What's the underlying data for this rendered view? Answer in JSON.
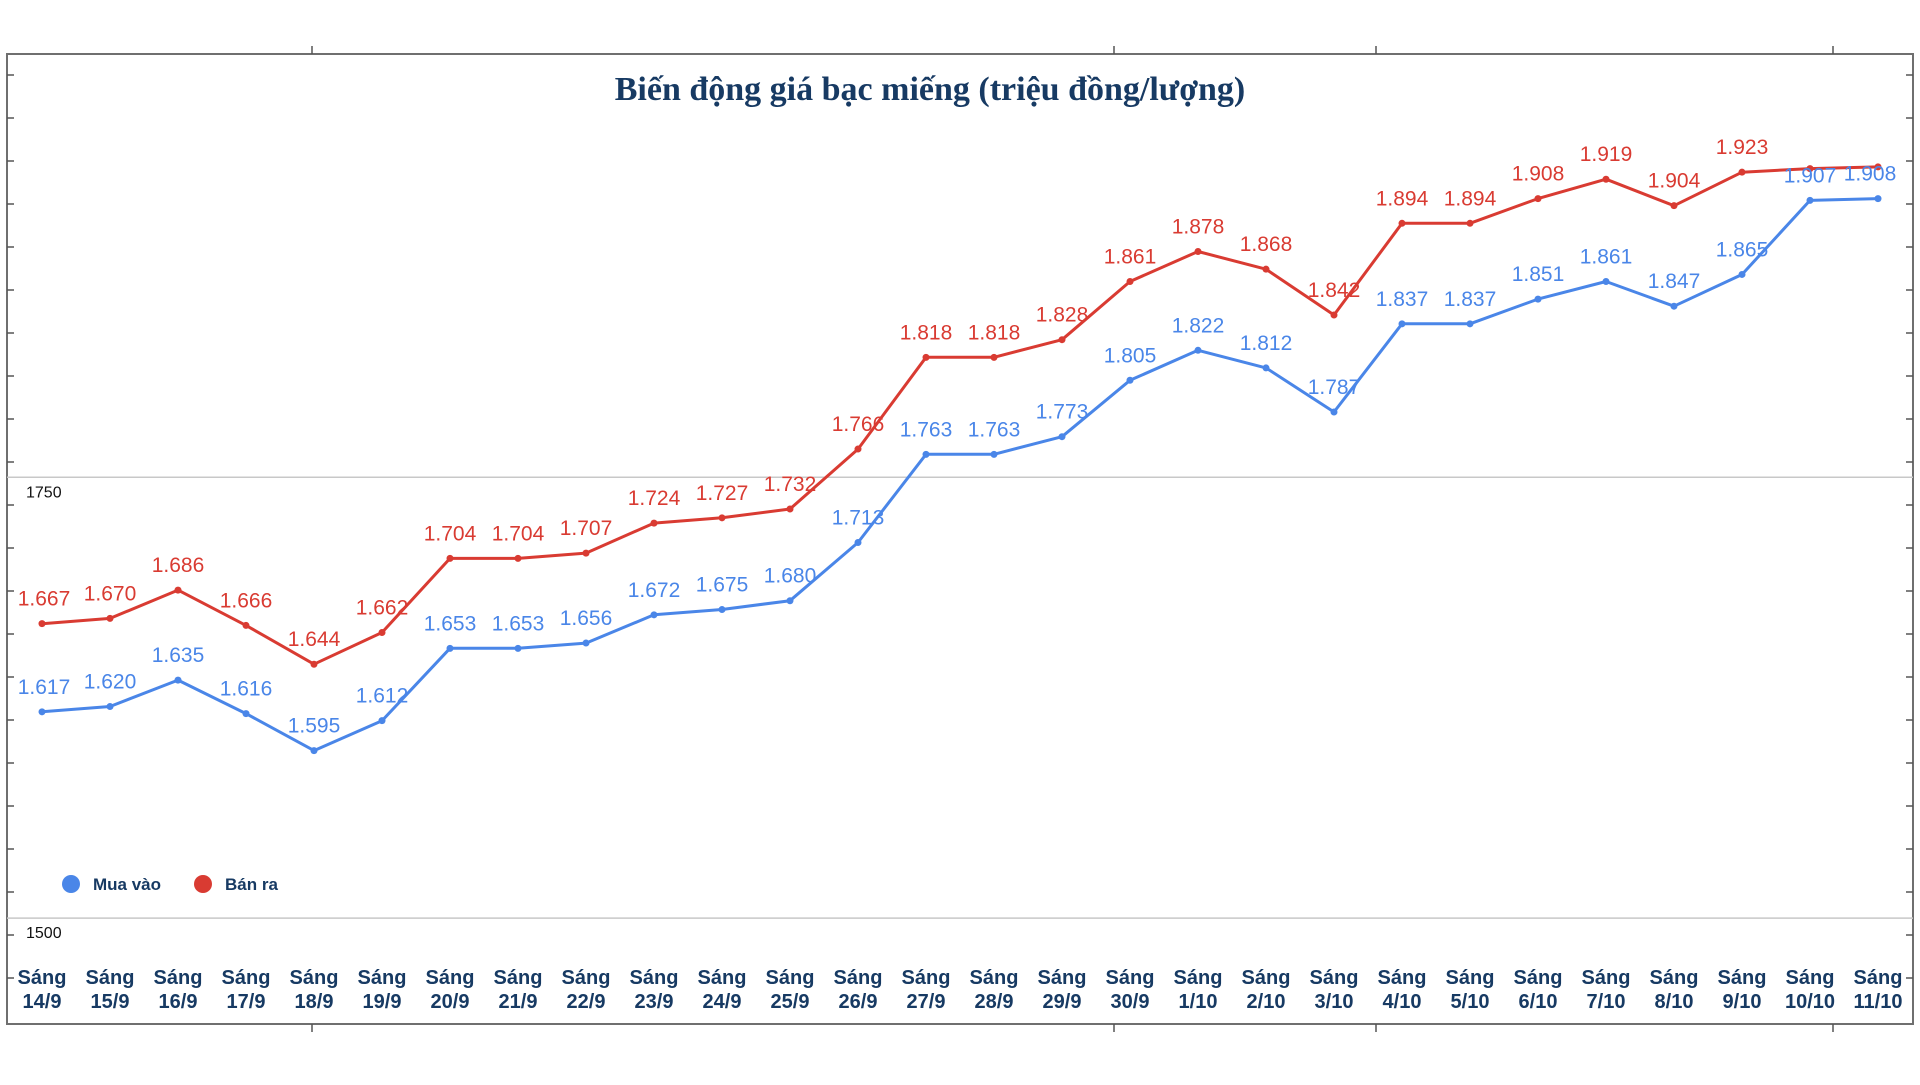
{
  "chart_data": {
    "type": "line",
    "title": "Biến động giá bạc miếng (triệu đồng/lượng)",
    "categories": [
      [
        "Sáng",
        "14/9"
      ],
      [
        "Sáng",
        "15/9"
      ],
      [
        "Sáng",
        "16/9"
      ],
      [
        "Sáng",
        "17/9"
      ],
      [
        "Sáng",
        "18/9"
      ],
      [
        "Sáng",
        "19/9"
      ],
      [
        "Sáng",
        "20/9"
      ],
      [
        "Sáng",
        "21/9"
      ],
      [
        "Sáng",
        "22/9"
      ],
      [
        "Sáng",
        "23/9"
      ],
      [
        "Sáng",
        "24/9"
      ],
      [
        "Sáng",
        "25/9"
      ],
      [
        "Sáng",
        "26/9"
      ],
      [
        "Sáng",
        "27/9"
      ],
      [
        "Sáng",
        "28/9"
      ],
      [
        "Sáng",
        "29/9"
      ],
      [
        "Sáng",
        "30/9"
      ],
      [
        "Sáng",
        "1/10"
      ],
      [
        "Sáng",
        "2/10"
      ],
      [
        "Sáng",
        "3/10"
      ],
      [
        "Sáng",
        "4/10"
      ],
      [
        "Sáng",
        "5/10"
      ],
      [
        "Sáng",
        "6/10"
      ],
      [
        "Sáng",
        "7/10"
      ],
      [
        "Sáng",
        "8/10"
      ],
      [
        "Sáng",
        "9/10"
      ],
      [
        "Sáng",
        "10/10"
      ],
      [
        "Sáng",
        "11/10"
      ]
    ],
    "series": [
      {
        "name": "Mua vào",
        "color": "#4a86e8",
        "values": [
          1617,
          1620,
          1635,
          1616,
          1595,
          1612,
          1653,
          1653,
          1656,
          1672,
          1675,
          1680,
          1713,
          1763,
          1763,
          1773,
          1805,
          1822,
          1812,
          1787,
          1837,
          1837,
          1851,
          1861,
          1847,
          1865,
          1907,
          1908
        ],
        "labels": [
          "1.617",
          "1.620",
          "1.635",
          "1.616",
          "1.595",
          "1.612",
          "1.653",
          "1.653",
          "1.656",
          "1.672",
          "1.675",
          "1.680",
          "1.713",
          "1.763",
          "1.763",
          "1.773",
          "1.805",
          "1.822",
          "1.812",
          "1.787",
          "1.837",
          "1.837",
          "1.851",
          "1.861",
          "1.847",
          "1.865",
          "1.907",
          "1.908"
        ]
      },
      {
        "name": "Bán ra",
        "color": "#d93b32",
        "values": [
          1667,
          1670,
          1686,
          1666,
          1644,
          1662,
          1704,
          1704,
          1707,
          1724,
          1727,
          1732,
          1766,
          1818,
          1818,
          1828,
          1861,
          1878,
          1868,
          1842,
          1894,
          1894,
          1908,
          1919,
          1904,
          1923,
          1925,
          1926
        ],
        "labels": [
          "1.667",
          "1.670",
          "1.686",
          "1.666",
          "1.644",
          "1.662",
          "1.704",
          "1.704",
          "1.707",
          "1.724",
          "1.727",
          "1.732",
          "1.766",
          "1.818",
          "1.818",
          "1.828",
          "1.861",
          "1.878",
          "1.868",
          "1.842",
          "1.894",
          "1.894",
          "1.908",
          "1.919",
          "1.904",
          "1.923",
          "",
          ""
        ]
      }
    ],
    "y_ticks": [
      {
        "value": 1750,
        "label": "1750"
      },
      {
        "value": 1500,
        "label": "1500"
      }
    ],
    "ylim": [
      1440,
      1990
    ],
    "grid": true,
    "legend_position": "lower-left",
    "xlabel": "",
    "ylabel": ""
  }
}
